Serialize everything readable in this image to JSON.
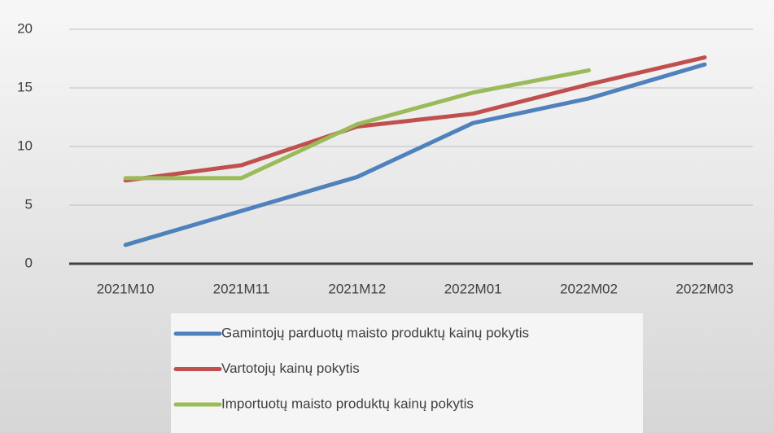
{
  "chart_data": {
    "type": "line",
    "categories": [
      "2021M10",
      "2021M11",
      "2021M12",
      "2022M01",
      "2022M02",
      "2022M03"
    ],
    "series": [
      {
        "name": "Gamintojų parduotų maisto produktų kainų pokytis",
        "color": "#4f81bd",
        "values": [
          1.6,
          4.5,
          7.4,
          12,
          14.1,
          17
        ]
      },
      {
        "name": "Vartotojų kainų pokytis",
        "color": "#c0504d",
        "values": [
          7.1,
          8.4,
          11.7,
          12.8,
          15.3,
          17.6
        ]
      },
      {
        "name": "Importuotų maisto produktų kainų pokytis",
        "color": "#9bbb59",
        "values": [
          7.3,
          7.3,
          11.9,
          14.6,
          16.5,
          null
        ]
      }
    ],
    "ylim": [
      0,
      20
    ],
    "yticks": [
      0,
      5,
      10,
      15,
      20
    ],
    "grid": true,
    "legend": "bottom"
  }
}
